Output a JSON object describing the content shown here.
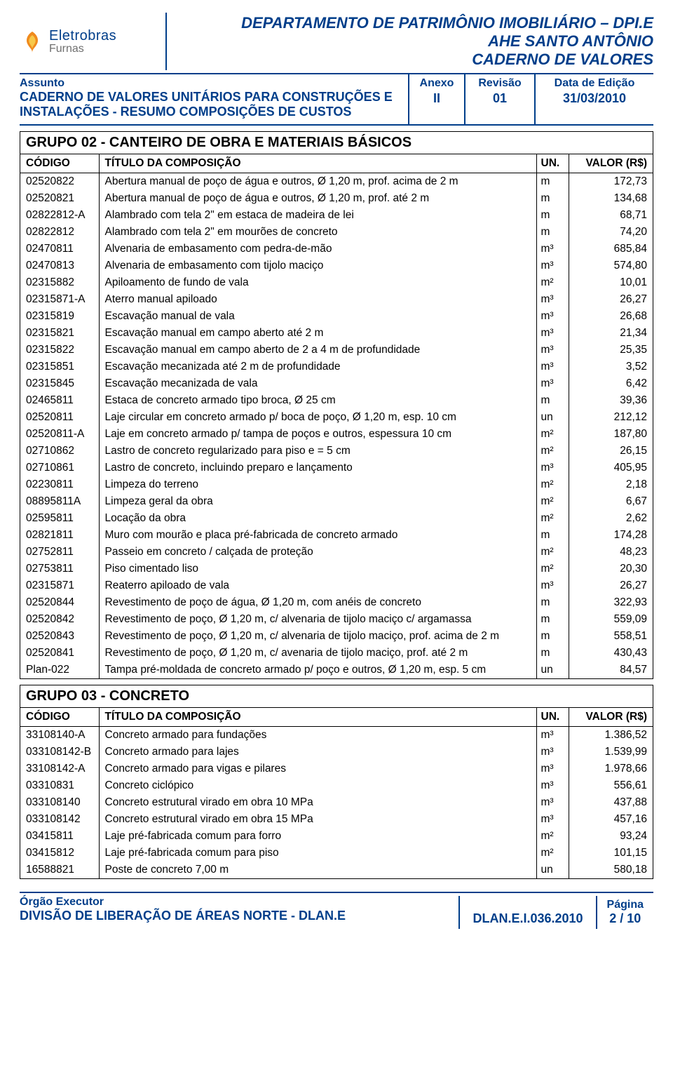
{
  "header": {
    "logo_line1": "Eletrobras",
    "logo_line2": "Furnas",
    "title_lines": [
      "DEPARTAMENTO DE PATRIMÔNIO IMOBILIÁRIO – DPI.E",
      "AHE SANTO ANTÔNIO",
      "CADERNO DE VALORES"
    ]
  },
  "meta": {
    "assunto_label": "Assunto",
    "assunto_value": "CADERNO DE VALORES UNITÁRIOS PARA CONSTRUÇÕES E INSTALAÇÕES - RESUMO COMPOSIÇÕES DE CUSTOS",
    "anexo_label": "Anexo",
    "anexo_value": "II",
    "revisao_label": "Revisão",
    "revisao_value": "01",
    "data_label": "Data de Edição",
    "data_value": "31/03/2010"
  },
  "columns": {
    "codigo": "CÓDIGO",
    "titulo": "TÍTULO DA COMPOSIÇÃO",
    "un": "UN.",
    "valor": "VALOR (R$)"
  },
  "group02": {
    "title": "GRUPO  02 -   CANTEIRO DE OBRA E MATERIAIS BÁSICOS",
    "rows": [
      [
        "02520822",
        "Abertura manual de poço de água e outros, Ø 1,20 m, prof. acima de 2 m",
        "m",
        "172,73"
      ],
      [
        "02520821",
        "Abertura manual de poço de água e outros, Ø 1,20 m, prof. até 2 m",
        "m",
        "134,68"
      ],
      [
        "02822812-A",
        "Alambrado com tela 2\" em estaca de madeira de lei",
        "m",
        "68,71"
      ],
      [
        "02822812",
        "Alambrado com tela 2\" em mourões de concreto",
        "m",
        "74,20"
      ],
      [
        "02470811",
        "Alvenaria de embasamento com pedra-de-mão",
        "m³",
        "685,84"
      ],
      [
        "02470813",
        "Alvenaria de embasamento com tijolo maciço",
        "m³",
        "574,80"
      ],
      [
        "02315882",
        "Apiloamento de fundo de vala",
        "m²",
        "10,01"
      ],
      [
        "02315871-A",
        "Aterro manual apiloado",
        "m³",
        "26,27"
      ],
      [
        "02315819",
        "Escavação manual de vala",
        "m³",
        "26,68"
      ],
      [
        "02315821",
        "Escavação manual em campo aberto até 2 m",
        "m³",
        "21,34"
      ],
      [
        "02315822",
        "Escavação manual em campo aberto de 2 a 4 m de profundidade",
        "m³",
        "25,35"
      ],
      [
        "02315851",
        "Escavação mecanizada até 2 m de profundidade",
        "m³",
        "3,52"
      ],
      [
        "02315845",
        "Escavação mecanizada de vala",
        "m³",
        "6,42"
      ],
      [
        "02465811",
        "Estaca de concreto armado tipo broca, Ø 25 cm",
        "m",
        "39,36"
      ],
      [
        "02520811",
        "Laje circular em concreto armado p/ boca de poço, Ø 1,20 m, esp. 10 cm",
        "un",
        "212,12"
      ],
      [
        "02520811-A",
        "Laje em concreto armado p/ tampa de poços e outros, espessura 10 cm",
        "m²",
        "187,80"
      ],
      [
        "02710862",
        "Lastro de concreto regularizado para piso e = 5 cm",
        "m²",
        "26,15"
      ],
      [
        "02710861",
        "Lastro de concreto, incluindo preparo e lançamento",
        "m³",
        "405,95"
      ],
      [
        "02230811",
        "Limpeza do terreno",
        "m²",
        "2,18"
      ],
      [
        "08895811A",
        "Limpeza geral da obra",
        "m²",
        "6,67"
      ],
      [
        "02595811",
        "Locação da obra",
        "m²",
        "2,62"
      ],
      [
        "02821811",
        "Muro com mourão e placa pré-fabricada de concreto armado",
        "m",
        "174,28"
      ],
      [
        "02752811",
        "Passeio em concreto / calçada de proteção",
        "m²",
        "48,23"
      ],
      [
        "02753811",
        "Piso cimentado liso",
        "m²",
        "20,30"
      ],
      [
        "02315871",
        "Reaterro apiloado de vala",
        "m³",
        "26,27"
      ],
      [
        "02520844",
        "Revestimento de poço de água, Ø 1,20 m, com anéis de concreto",
        "m",
        "322,93"
      ],
      [
        "02520842",
        "Revestimento de poço, Ø 1,20 m, c/ alvenaria de tijolo maciço c/ argamassa",
        "m",
        "559,09"
      ],
      [
        "02520843",
        "Revestimento de poço, Ø 1,20 m, c/ alvenaria de tijolo maciço, prof. acima de 2 m",
        "m",
        "558,51"
      ],
      [
        "02520841",
        "Revestimento de poço, Ø 1,20 m, c/ avenaria de tijolo maciço, prof. até 2 m",
        "m",
        "430,43"
      ],
      [
        "Plan-022",
        "Tampa pré-moldada de concreto armado p/ poço e outros, Ø 1,20 m, esp. 5 cm",
        "un",
        "84,57"
      ]
    ]
  },
  "group03": {
    "title": "GRUPO  03 -   CONCRETO",
    "rows": [
      [
        "33108140-A",
        "Concreto armado para fundações",
        "m³",
        "1.386,52"
      ],
      [
        "033108142-B",
        "Concreto armado para lajes",
        "m³",
        "1.539,99"
      ],
      [
        "33108142-A",
        "Concreto armado para vigas e pilares",
        "m³",
        "1.978,66"
      ],
      [
        "03310831",
        "Concreto ciclópico",
        "m³",
        "556,61"
      ],
      [
        "033108140",
        "Concreto estrutural virado em obra 10 MPa",
        "m³",
        "437,88"
      ],
      [
        "033108142",
        "Concreto estrutural virado em obra 15 MPa",
        "m³",
        "457,16"
      ],
      [
        "03415811",
        "Laje pré-fabricada comum para forro",
        "m²",
        "93,24"
      ],
      [
        "03415812",
        "Laje pré-fabricada comum para piso",
        "m²",
        "101,15"
      ],
      [
        "16588821",
        "Poste de concreto 7,00 m",
        "un",
        "580,18"
      ]
    ]
  },
  "footer": {
    "orgao_label": "Órgão Executor",
    "orgao_value": "DIVISÃO DE LIBERAÇÃO DE ÁREAS NORTE - DLAN.E",
    "doc_ref": "DLAN.E.I.036.2010",
    "pagina_label": "Página",
    "pagina_value": "2 / 10"
  },
  "colors": {
    "brand_blue": "#003e8a",
    "logo_orange": "#f08a1d",
    "logo_yellow": "#f7c84a"
  }
}
